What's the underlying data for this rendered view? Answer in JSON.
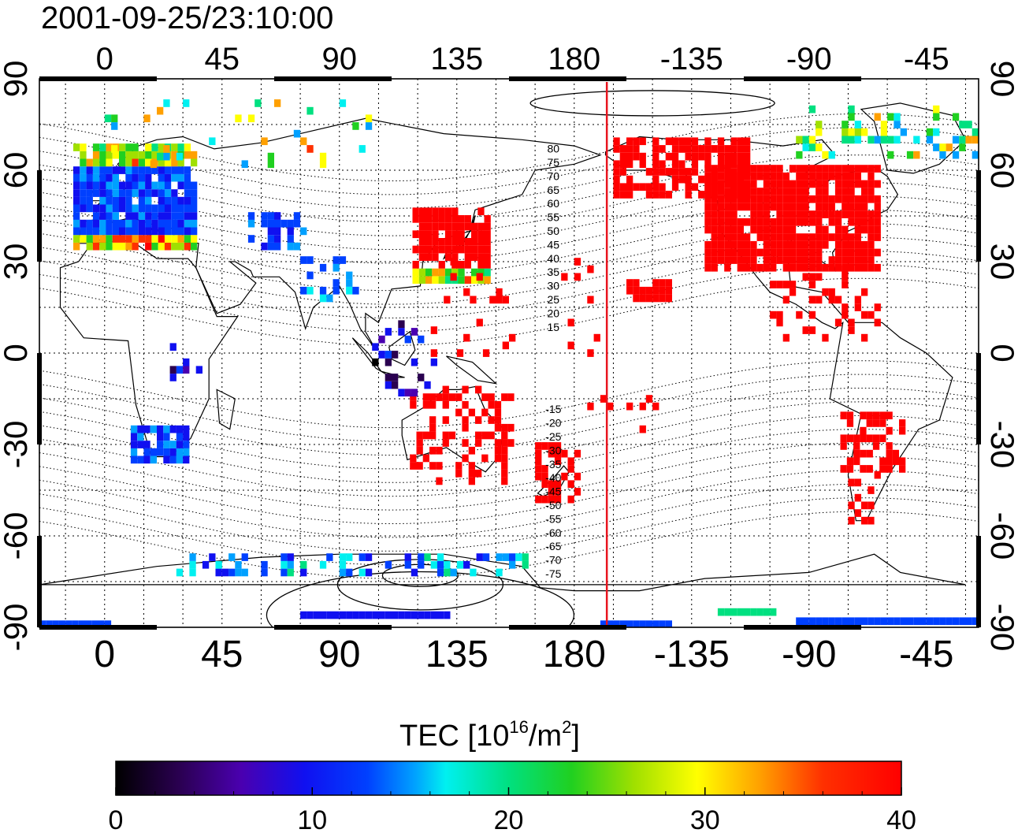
{
  "map": {
    "timestamp": "2001-09-25/23:10:00",
    "top_lon_labels": [
      "0",
      "45",
      "90",
      "135",
      "180",
      "-135",
      "-90",
      "-45"
    ],
    "bottom_lon_labels": [
      "0",
      "45",
      "90",
      "135",
      "180",
      "-135",
      "-90",
      "-45"
    ],
    "left_lat_labels": [
      "90",
      "60",
      "30",
      "0",
      "-30",
      "-60",
      "-90"
    ],
    "right_lat_labels": [
      "90",
      "60",
      "30",
      "0",
      "-30",
      "-60",
      "-90"
    ],
    "contour_labels": [
      "80",
      "75",
      "70",
      "65",
      "60",
      "55",
      "50",
      "45",
      "40",
      "35",
      "30",
      "25",
      "20",
      "15",
      "-15",
      "-20",
      "-25",
      "-30",
      "-35",
      "-40",
      "-45",
      "-50",
      "-55",
      "-60",
      "-65",
      "-70",
      "-75"
    ],
    "meridian_marker_lon": 192.5,
    "lon_range": [
      -25,
      335
    ],
    "lat_range": [
      -90,
      90
    ]
  },
  "colorbar": {
    "label_prefix": "TEC  [10",
    "label_exp1": "16",
    "label_mid": "/m",
    "label_exp2": "2",
    "label_suffix": "]",
    "ticks": [
      "0",
      "10",
      "20",
      "30",
      "40"
    ],
    "range": [
      0,
      40
    ]
  },
  "colors": {
    "marker_line": "#e8141e",
    "high_tec": "#ff0000"
  }
}
